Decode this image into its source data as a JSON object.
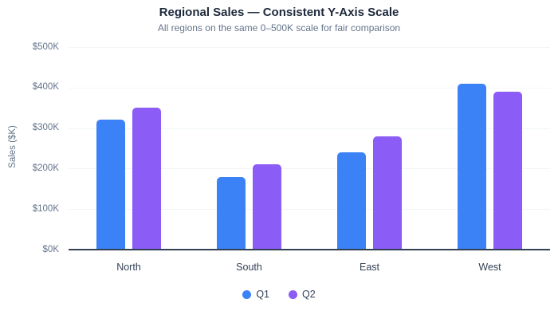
{
  "chart_data": {
    "type": "bar",
    "title": "Regional Sales — Consistent Y-Axis Scale",
    "subtitle": "All regions on the same 0–500K scale for fair comparison",
    "ylabel": "Sales ($K)",
    "categories": [
      "North",
      "South",
      "East",
      "West"
    ],
    "series": [
      {
        "name": "Q1",
        "color": "#3b82f6",
        "values": [
          320,
          180,
          240,
          410
        ]
      },
      {
        "name": "Q2",
        "color": "#8b5cf6",
        "values": [
          350,
          210,
          280,
          390
        ]
      }
    ],
    "ylim": [
      0,
      500
    ],
    "yticks": [
      {
        "value": 0,
        "label": "$0K"
      },
      {
        "value": 100,
        "label": "$100K"
      },
      {
        "value": 200,
        "label": "$200K"
      },
      {
        "value": 300,
        "label": "$300K"
      },
      {
        "value": 400,
        "label": "$400K"
      },
      {
        "value": 500,
        "label": "$500K"
      }
    ],
    "grid": true,
    "legend_position": "bottom"
  },
  "colors": {
    "background": "#ffffff",
    "q1": "#3b82f6",
    "q2": "#8b5cf6",
    "title": "#1e293b",
    "subtitle": "#64748b",
    "tick_label": "#64748b",
    "category_label": "#334155",
    "legend_label": "#334155",
    "axis_line": "#334155",
    "gridline": "#f1f5f9"
  }
}
